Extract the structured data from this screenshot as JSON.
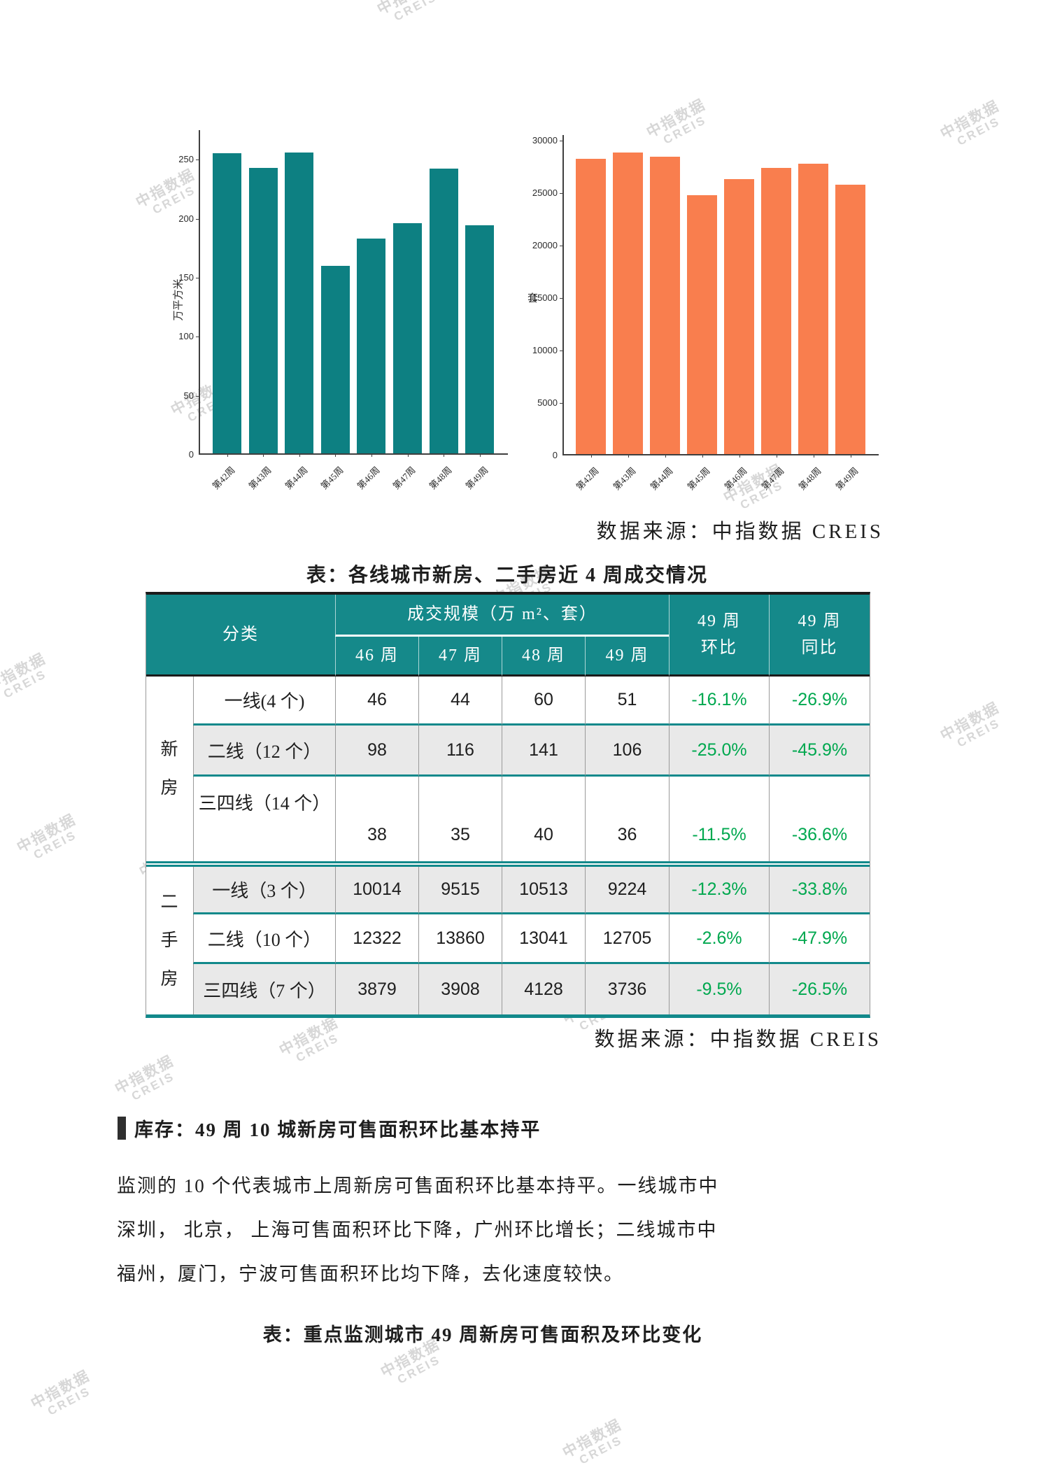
{
  "watermark": {
    "line1": "中指数据",
    "line2": "CREIS"
  },
  "chart_data": [
    {
      "type": "bar",
      "title": "",
      "ylabel": "万平方米",
      "xlabel": "",
      "categories": [
        "第42周",
        "第43周",
        "第44周",
        "第45周",
        "第46周",
        "第47周",
        "第48周",
        "第49周"
      ],
      "values": [
        254,
        242,
        255,
        159,
        182,
        195,
        241,
        193
      ],
      "y_ticks": [
        0,
        50,
        100,
        150,
        200,
        250
      ],
      "ylim": [
        0,
        275
      ],
      "grid": false,
      "legend": "none",
      "bar_color": "#0d8082"
    },
    {
      "type": "bar",
      "title": "",
      "ylabel": "套",
      "xlabel": "",
      "categories": [
        "第42周",
        "第43周",
        "第44周",
        "第45周",
        "第46周",
        "第47周",
        "第48周",
        "第49周"
      ],
      "values": [
        28150,
        28700,
        28300,
        24650,
        26215,
        27283,
        27682,
        25665
      ],
      "y_ticks": [
        0,
        5000,
        10000,
        15000,
        20000,
        25000,
        30000
      ],
      "ylim": [
        0,
        30533
      ],
      "grid": false,
      "legend": "none",
      "bar_color": "#f97e4e"
    }
  ],
  "charts_source": "数据来源：中指数据 CREIS",
  "table_section": {
    "title": "表：各线城市新房、二手房近 4 周成交情况",
    "header": {
      "category": "分类",
      "scale_group": "成交规模（万 m²、套）",
      "weeks": [
        "46 周",
        "47 周",
        "48 周",
        "49 周"
      ],
      "wow": [
        "49 周",
        "环比"
      ],
      "yoy": [
        "49 周",
        "同比"
      ]
    },
    "groups": [
      {
        "name": "新房",
        "rows": [
          {
            "label": "一线(4 个)",
            "values": [
              "46",
              "44",
              "60",
              "51"
            ],
            "wow": "-16.1%",
            "yoy": "-26.9%"
          },
          {
            "label": "二线（12 个）",
            "values": [
              "98",
              "116",
              "141",
              "106"
            ],
            "wow": "-25.0%",
            "yoy": "-45.9%"
          },
          {
            "label": "三四线（14 个）",
            "values": [
              "38",
              "35",
              "40",
              "36"
            ],
            "wow": "-11.5%",
            "yoy": "-36.6%"
          }
        ]
      },
      {
        "name": "二手房",
        "rows": [
          {
            "label": "一线（3 个）",
            "values": [
              "10014",
              "9515",
              "10513",
              "9224"
            ],
            "wow": "-12.3%",
            "yoy": "-33.8%"
          },
          {
            "label": "二线（10 个）",
            "values": [
              "12322",
              "13860",
              "13041",
              "12705"
            ],
            "wow": "-2.6%",
            "yoy": "-47.9%"
          },
          {
            "label": "三四线（7 个）",
            "values": [
              "3879",
              "3908",
              "4128",
              "3736"
            ],
            "wow": "-9.5%",
            "yoy": "-26.5%"
          }
        ]
      }
    ],
    "source": "数据来源：中指数据 CREIS"
  },
  "inventory_section": {
    "heading": "库存：49 周 10 城新房可售面积环比基本持平",
    "paragraph_lines": [
      "监测的 10 个代表城市上周新房可售面积环比基本持平。一线城市中",
      "深圳， 北京， 上海可售面积环比下降，广州环比增长；二线城市中",
      "福州，厦门，宁波可售面积环比均下降，去化速度较快。"
    ],
    "next_table_title": "表：重点监测城市 49 周新房可售面积及环比变化"
  }
}
